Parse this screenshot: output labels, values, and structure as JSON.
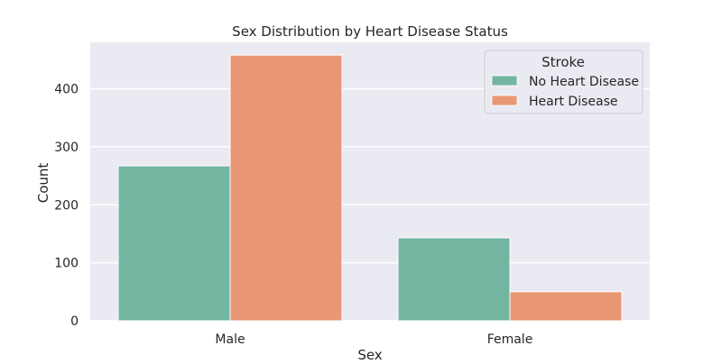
{
  "chart_data": {
    "type": "bar",
    "title": "Sex Distribution by Heart Disease Status",
    "xlabel": "Sex",
    "ylabel": "Count",
    "categories": [
      "Male",
      "Female"
    ],
    "series": [
      {
        "name": "No Heart Disease",
        "values": [
          267,
          143
        ],
        "color": "#72b6a1"
      },
      {
        "name": "Heart Disease",
        "values": [
          458,
          50
        ],
        "color": "#e99675"
      }
    ],
    "ylim": [
      0,
      480
    ],
    "yticks": [
      0,
      100,
      200,
      300,
      400
    ],
    "legend": {
      "title": "Stroke",
      "placement": "top-right"
    },
    "grid": true,
    "background_color": "#eaeaf2"
  }
}
